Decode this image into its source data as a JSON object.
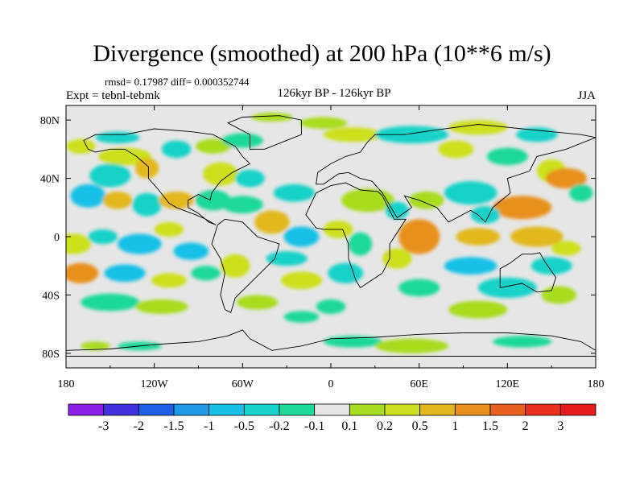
{
  "header": {
    "title": "Divergence (smoothed) at 200 hPa (10**6 m/s)",
    "stats": "rmsd= 0.17987 diff= 0.000352744",
    "expt": "Expt = tebnl-tebmk",
    "subtitle": "126kyr BP - 126kyr BP",
    "season": "JJA"
  },
  "chart_data": {
    "type": "heatmap",
    "title": "Divergence (smoothed) at 200 hPa (10**6 m/s)",
    "xlabel": "",
    "ylabel": "",
    "xlim": [
      -180,
      180
    ],
    "ylim": [
      -90,
      90
    ],
    "x_ticks": [
      {
        "value": -180,
        "label": "180"
      },
      {
        "value": -120,
        "label": "120W"
      },
      {
        "value": -60,
        "label": "60W"
      },
      {
        "value": 0,
        "label": "0"
      },
      {
        "value": 60,
        "label": "60E"
      },
      {
        "value": 120,
        "label": "120E"
      },
      {
        "value": 180,
        "label": "180"
      }
    ],
    "y_ticks": [
      {
        "value": 80,
        "label": "80N"
      },
      {
        "value": 40,
        "label": "40N"
      },
      {
        "value": 0,
        "label": "0"
      },
      {
        "value": -40,
        "label": "40S"
      },
      {
        "value": -80,
        "label": "80S"
      }
    ],
    "background_color": "#e6e6e6",
    "colorbar": {
      "labels": [
        "-3",
        "-2",
        "-1.5",
        "-1",
        "-0.5",
        "-0.2",
        "-0.1",
        "0.1",
        "0.2",
        "0.5",
        "1",
        "1.5",
        "2",
        "3"
      ],
      "colors": [
        "#8c1fe6",
        "#3f2fdc",
        "#1f5fe6",
        "#1f9ae6",
        "#19c0e6",
        "#17d2c8",
        "#1fd89a",
        "#e6e6e6",
        "#a8dc1f",
        "#cce01f",
        "#e2b81f",
        "#e8901f",
        "#e8601f",
        "#e8301f",
        "#e41a1c"
      ]
    },
    "anomalies": [
      {
        "lon": -170,
        "lat": 62,
        "rx": 10,
        "ry": 5,
        "level": 2
      },
      {
        "lon": -145,
        "lat": 68,
        "rx": 15,
        "ry": 4,
        "level": -2
      },
      {
        "lon": -140,
        "lat": 55,
        "rx": 18,
        "ry": 6,
        "level": 2
      },
      {
        "lon": -150,
        "lat": 42,
        "rx": 14,
        "ry": 8,
        "level": -2
      },
      {
        "lon": -125,
        "lat": 47,
        "rx": 8,
        "ry": 7,
        "level": 3
      },
      {
        "lon": -105,
        "lat": 60,
        "rx": 10,
        "ry": 6,
        "level": -2
      },
      {
        "lon": -80,
        "lat": 62,
        "rx": 12,
        "ry": 5,
        "level": 1
      },
      {
        "lon": -60,
        "lat": 66,
        "rx": 14,
        "ry": 5,
        "level": -1
      },
      {
        "lon": -75,
        "lat": 43,
        "rx": 12,
        "ry": 8,
        "level": 2
      },
      {
        "lon": -55,
        "lat": 40,
        "rx": 10,
        "ry": 6,
        "level": -2
      },
      {
        "lon": -40,
        "lat": 82,
        "rx": 14,
        "ry": 3,
        "level": 1
      },
      {
        "lon": -5,
        "lat": 78,
        "rx": 16,
        "ry": 4,
        "level": 1
      },
      {
        "lon": 15,
        "lat": 70,
        "rx": 20,
        "ry": 5,
        "level": 2
      },
      {
        "lon": 55,
        "lat": 70,
        "rx": 25,
        "ry": 6,
        "level": -2
      },
      {
        "lon": 100,
        "lat": 75,
        "rx": 20,
        "ry": 5,
        "level": 2
      },
      {
        "lon": 140,
        "lat": 70,
        "rx": 14,
        "ry": 5,
        "level": -2
      },
      {
        "lon": 85,
        "lat": 60,
        "rx": 12,
        "ry": 6,
        "level": 2
      },
      {
        "lon": 120,
        "lat": 55,
        "rx": 14,
        "ry": 6,
        "level": -1
      },
      {
        "lon": 150,
        "lat": 45,
        "rx": 10,
        "ry": 8,
        "level": 2
      },
      {
        "lon": 160,
        "lat": 40,
        "rx": 14,
        "ry": 7,
        "level": 4
      },
      {
        "lon": 170,
        "lat": 30,
        "rx": 8,
        "ry": 6,
        "level": -1
      },
      {
        "lon": -165,
        "lat": 28,
        "rx": 12,
        "ry": 8,
        "level": -3
      },
      {
        "lon": -145,
        "lat": 25,
        "rx": 10,
        "ry": 6,
        "level": 3
      },
      {
        "lon": -125,
        "lat": 22,
        "rx": 10,
        "ry": 8,
        "level": -2
      },
      {
        "lon": -105,
        "lat": 25,
        "rx": 12,
        "ry": 6,
        "level": 3
      },
      {
        "lon": -80,
        "lat": 25,
        "rx": 12,
        "ry": 7,
        "level": -1
      },
      {
        "lon": -60,
        "lat": 22,
        "rx": 14,
        "ry": 6,
        "level": -1
      },
      {
        "lon": -25,
        "lat": 30,
        "rx": 14,
        "ry": 6,
        "level": -2
      },
      {
        "lon": -40,
        "lat": 10,
        "rx": 12,
        "ry": 8,
        "level": 3
      },
      {
        "lon": -20,
        "lat": 0,
        "rx": 12,
        "ry": 7,
        "level": -3
      },
      {
        "lon": 5,
        "lat": 5,
        "rx": 10,
        "ry": 6,
        "level": 2
      },
      {
        "lon": 25,
        "lat": 25,
        "rx": 18,
        "ry": 8,
        "level": 1
      },
      {
        "lon": 45,
        "lat": 18,
        "rx": 8,
        "ry": 6,
        "level": -2
      },
      {
        "lon": 65,
        "lat": 25,
        "rx": 12,
        "ry": 6,
        "level": 1
      },
      {
        "lon": 95,
        "lat": 30,
        "rx": 18,
        "ry": 8,
        "level": -2
      },
      {
        "lon": 130,
        "lat": 20,
        "rx": 20,
        "ry": 8,
        "level": 4
      },
      {
        "lon": 105,
        "lat": 15,
        "rx": 10,
        "ry": 6,
        "level": -2
      },
      {
        "lon": 60,
        "lat": 0,
        "rx": 14,
        "ry": 12,
        "level": 4
      },
      {
        "lon": 45,
        "lat": -15,
        "rx": 10,
        "ry": 7,
        "level": 2
      },
      {
        "lon": 100,
        "lat": 0,
        "rx": 15,
        "ry": 6,
        "level": 3
      },
      {
        "lon": 140,
        "lat": 0,
        "rx": 18,
        "ry": 7,
        "level": 3
      },
      {
        "lon": 95,
        "lat": -20,
        "rx": 18,
        "ry": 6,
        "level": -3
      },
      {
        "lon": 150,
        "lat": -20,
        "rx": 14,
        "ry": 6,
        "level": -2
      },
      {
        "lon": 160,
        "lat": -8,
        "rx": 10,
        "ry": 5,
        "level": 2
      },
      {
        "lon": -175,
        "lat": -5,
        "rx": 12,
        "ry": 7,
        "level": 2
      },
      {
        "lon": -155,
        "lat": 0,
        "rx": 10,
        "ry": 5,
        "level": -2
      },
      {
        "lon": -130,
        "lat": -5,
        "rx": 15,
        "ry": 7,
        "level": -3
      },
      {
        "lon": -110,
        "lat": 5,
        "rx": 10,
        "ry": 5,
        "level": 2
      },
      {
        "lon": -95,
        "lat": -10,
        "rx": 12,
        "ry": 6,
        "level": -3
      },
      {
        "lon": -170,
        "lat": -25,
        "rx": 12,
        "ry": 7,
        "level": 4
      },
      {
        "lon": -140,
        "lat": -25,
        "rx": 14,
        "ry": 6,
        "level": -3
      },
      {
        "lon": -110,
        "lat": -30,
        "rx": 12,
        "ry": 5,
        "level": 2
      },
      {
        "lon": -85,
        "lat": -25,
        "rx": 10,
        "ry": 5,
        "level": -1
      },
      {
        "lon": -65,
        "lat": -20,
        "rx": 10,
        "ry": 8,
        "level": 2
      },
      {
        "lon": -30,
        "lat": -15,
        "rx": 14,
        "ry": 5,
        "level": -2
      },
      {
        "lon": -20,
        "lat": -30,
        "rx": 14,
        "ry": 6,
        "level": 2
      },
      {
        "lon": 10,
        "lat": -25,
        "rx": 12,
        "ry": 7,
        "level": -2
      },
      {
        "lon": 20,
        "lat": -5,
        "rx": 8,
        "ry": 8,
        "level": -1
      },
      {
        "lon": 60,
        "lat": -35,
        "rx": 14,
        "ry": 6,
        "level": -1
      },
      {
        "lon": 120,
        "lat": -35,
        "rx": 20,
        "ry": 7,
        "level": -2
      },
      {
        "lon": 155,
        "lat": -40,
        "rx": 12,
        "ry": 6,
        "level": 1
      },
      {
        "lon": -150,
        "lat": -45,
        "rx": 20,
        "ry": 6,
        "level": -1
      },
      {
        "lon": -115,
        "lat": -48,
        "rx": 18,
        "ry": 5,
        "level": 1
      },
      {
        "lon": -50,
        "lat": -45,
        "rx": 14,
        "ry": 5,
        "level": 1
      },
      {
        "lon": 0,
        "lat": -48,
        "rx": 10,
        "ry": 5,
        "level": -1
      },
      {
        "lon": 100,
        "lat": -50,
        "rx": 20,
        "ry": 6,
        "level": 1
      },
      {
        "lon": -20,
        "lat": -55,
        "rx": 12,
        "ry": 4,
        "level": -1
      },
      {
        "lon": -130,
        "lat": -75,
        "rx": 15,
        "ry": 3,
        "level": -1
      },
      {
        "lon": -160,
        "lat": -75,
        "rx": 10,
        "ry": 3,
        "level": 1
      },
      {
        "lon": 15,
        "lat": -72,
        "rx": 20,
        "ry": 4,
        "level": -1
      },
      {
        "lon": 55,
        "lat": -75,
        "rx": 25,
        "ry": 5,
        "level": 1
      },
      {
        "lon": 130,
        "lat": -72,
        "rx": 20,
        "ry": 4,
        "level": -1
      }
    ],
    "continents": [
      {
        "name": "north-america",
        "points": [
          [
            -168,
            66
          ],
          [
            -160,
            70
          ],
          [
            -140,
            70
          ],
          [
            -120,
            74
          ],
          [
            -95,
            72
          ],
          [
            -80,
            70
          ],
          [
            -65,
            62
          ],
          [
            -60,
            55
          ],
          [
            -55,
            50
          ],
          [
            -67,
            44
          ],
          [
            -75,
            38
          ],
          [
            -81,
            30
          ],
          [
            -82,
            25
          ],
          [
            -90,
            29
          ],
          [
            -97,
            25
          ],
          [
            -97,
            20
          ],
          [
            -90,
            16
          ],
          [
            -83,
            10
          ],
          [
            -78,
            8
          ],
          [
            -85,
            12
          ],
          [
            -92,
            15
          ],
          [
            -105,
            20
          ],
          [
            -110,
            23
          ],
          [
            -117,
            32
          ],
          [
            -124,
            40
          ],
          [
            -124,
            48
          ],
          [
            -132,
            55
          ],
          [
            -140,
            60
          ],
          [
            -150,
            60
          ],
          [
            -160,
            58
          ],
          [
            -165,
            60
          ]
        ]
      },
      {
        "name": "greenland",
        "points": [
          [
            -55,
            60
          ],
          [
            -45,
            60
          ],
          [
            -20,
            70
          ],
          [
            -20,
            80
          ],
          [
            -35,
            83
          ],
          [
            -60,
            82
          ],
          [
            -70,
            78
          ],
          [
            -55,
            70
          ]
        ]
      },
      {
        "name": "south-america",
        "points": [
          [
            -77,
            8
          ],
          [
            -72,
            12
          ],
          [
            -60,
            10
          ],
          [
            -50,
            0
          ],
          [
            -35,
            -5
          ],
          [
            -38,
            -15
          ],
          [
            -48,
            -25
          ],
          [
            -58,
            -35
          ],
          [
            -65,
            -42
          ],
          [
            -68,
            -52
          ],
          [
            -72,
            -50
          ],
          [
            -75,
            -40
          ],
          [
            -72,
            -25
          ],
          [
            -75,
            -15
          ],
          [
            -81,
            -5
          ]
        ]
      },
      {
        "name": "africa",
        "points": [
          [
            -17,
            15
          ],
          [
            -10,
            30
          ],
          [
            0,
            35
          ],
          [
            10,
            37
          ],
          [
            20,
            32
          ],
          [
            32,
            31
          ],
          [
            35,
            28
          ],
          [
            43,
            12
          ],
          [
            51,
            12
          ],
          [
            40,
            -5
          ],
          [
            40,
            -15
          ],
          [
            35,
            -25
          ],
          [
            20,
            -35
          ],
          [
            17,
            -30
          ],
          [
            12,
            -15
          ],
          [
            12,
            -5
          ],
          [
            8,
            5
          ],
          [
            -5,
            5
          ],
          [
            -10,
            6
          ]
        ]
      },
      {
        "name": "eurasia",
        "points": [
          [
            -10,
            36
          ],
          [
            -9,
            44
          ],
          [
            0,
            50
          ],
          [
            10,
            55
          ],
          [
            20,
            58
          ],
          [
            25,
            65
          ],
          [
            30,
            70
          ],
          [
            50,
            70
          ],
          [
            70,
            73
          ],
          [
            100,
            77
          ],
          [
            140,
            73
          ],
          [
            170,
            70
          ],
          [
            180,
            68
          ],
          [
            160,
            60
          ],
          [
            140,
            55
          ],
          [
            135,
            45
          ],
          [
            120,
            40
          ],
          [
            122,
            30
          ],
          [
            110,
            20
          ],
          [
            105,
            10
          ],
          [
            100,
            15
          ],
          [
            95,
            18
          ],
          [
            80,
            10
          ],
          [
            72,
            20
          ],
          [
            60,
            25
          ],
          [
            50,
            28
          ],
          [
            55,
            20
          ],
          [
            45,
            13
          ],
          [
            35,
            30
          ],
          [
            28,
            38
          ],
          [
            20,
            40
          ],
          [
            12,
            44
          ],
          [
            5,
            43
          ],
          [
            -5,
            36
          ]
        ]
      },
      {
        "name": "australia",
        "points": [
          [
            115,
            -22
          ],
          [
            122,
            -18
          ],
          [
            130,
            -12
          ],
          [
            137,
            -12
          ],
          [
            142,
            -11
          ],
          [
            146,
            -18
          ],
          [
            153,
            -28
          ],
          [
            150,
            -37
          ],
          [
            140,
            -38
          ],
          [
            130,
            -32
          ],
          [
            115,
            -35
          ]
        ]
      },
      {
        "name": "antarctica",
        "points": [
          [
            -180,
            -78
          ],
          [
            -150,
            -77
          ],
          [
            -120,
            -74
          ],
          [
            -90,
            -72
          ],
          [
            -70,
            -68
          ],
          [
            -60,
            -64
          ],
          [
            -55,
            -70
          ],
          [
            -40,
            -78
          ],
          [
            -20,
            -75
          ],
          [
            0,
            -70
          ],
          [
            30,
            -69
          ],
          [
            60,
            -67
          ],
          [
            90,
            -66
          ],
          [
            120,
            -66
          ],
          [
            150,
            -68
          ],
          [
            170,
            -72
          ],
          [
            180,
            -78
          ],
          [
            180,
            -82
          ],
          [
            -180,
            -82
          ]
        ]
      }
    ]
  }
}
